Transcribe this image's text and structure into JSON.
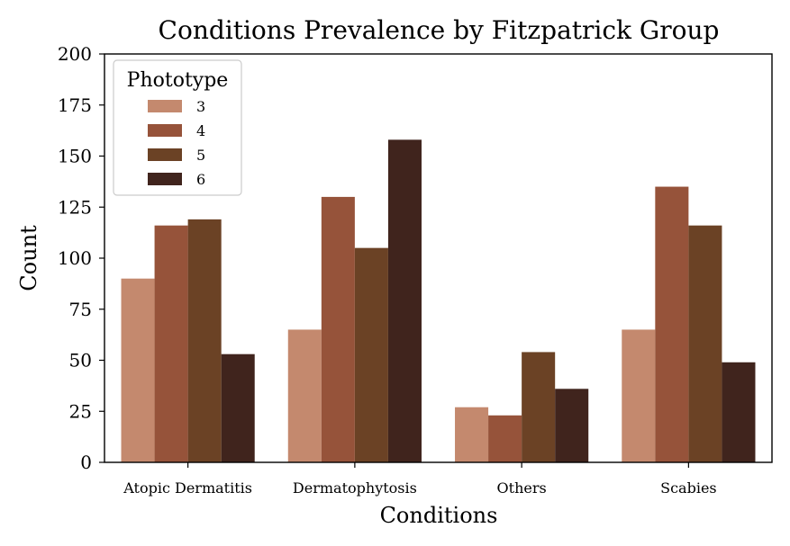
{
  "chart_data": {
    "type": "bar",
    "title": "Conditions Prevalence by Fitzpatrick Group",
    "xlabel": "Conditions",
    "ylabel": "Count",
    "ylim": [
      0,
      200
    ],
    "yticks": [
      0,
      25,
      50,
      75,
      100,
      125,
      150,
      175,
      200
    ],
    "categories": [
      "Atopic Dermatitis",
      "Dermatophytosis",
      "Others",
      "Scabies"
    ],
    "legend": {
      "title": "Phototype",
      "placement": "top-left"
    },
    "grid": false,
    "series": [
      {
        "name": "3",
        "color": "#c4896e",
        "values": [
          90,
          65,
          27,
          65
        ]
      },
      {
        "name": "4",
        "color": "#96533a",
        "values": [
          116,
          130,
          23,
          135
        ]
      },
      {
        "name": "5",
        "color": "#6b4225",
        "values": [
          119,
          105,
          54,
          116
        ]
      },
      {
        "name": "6",
        "color": "#40241d",
        "values": [
          53,
          158,
          36,
          49
        ]
      }
    ]
  }
}
